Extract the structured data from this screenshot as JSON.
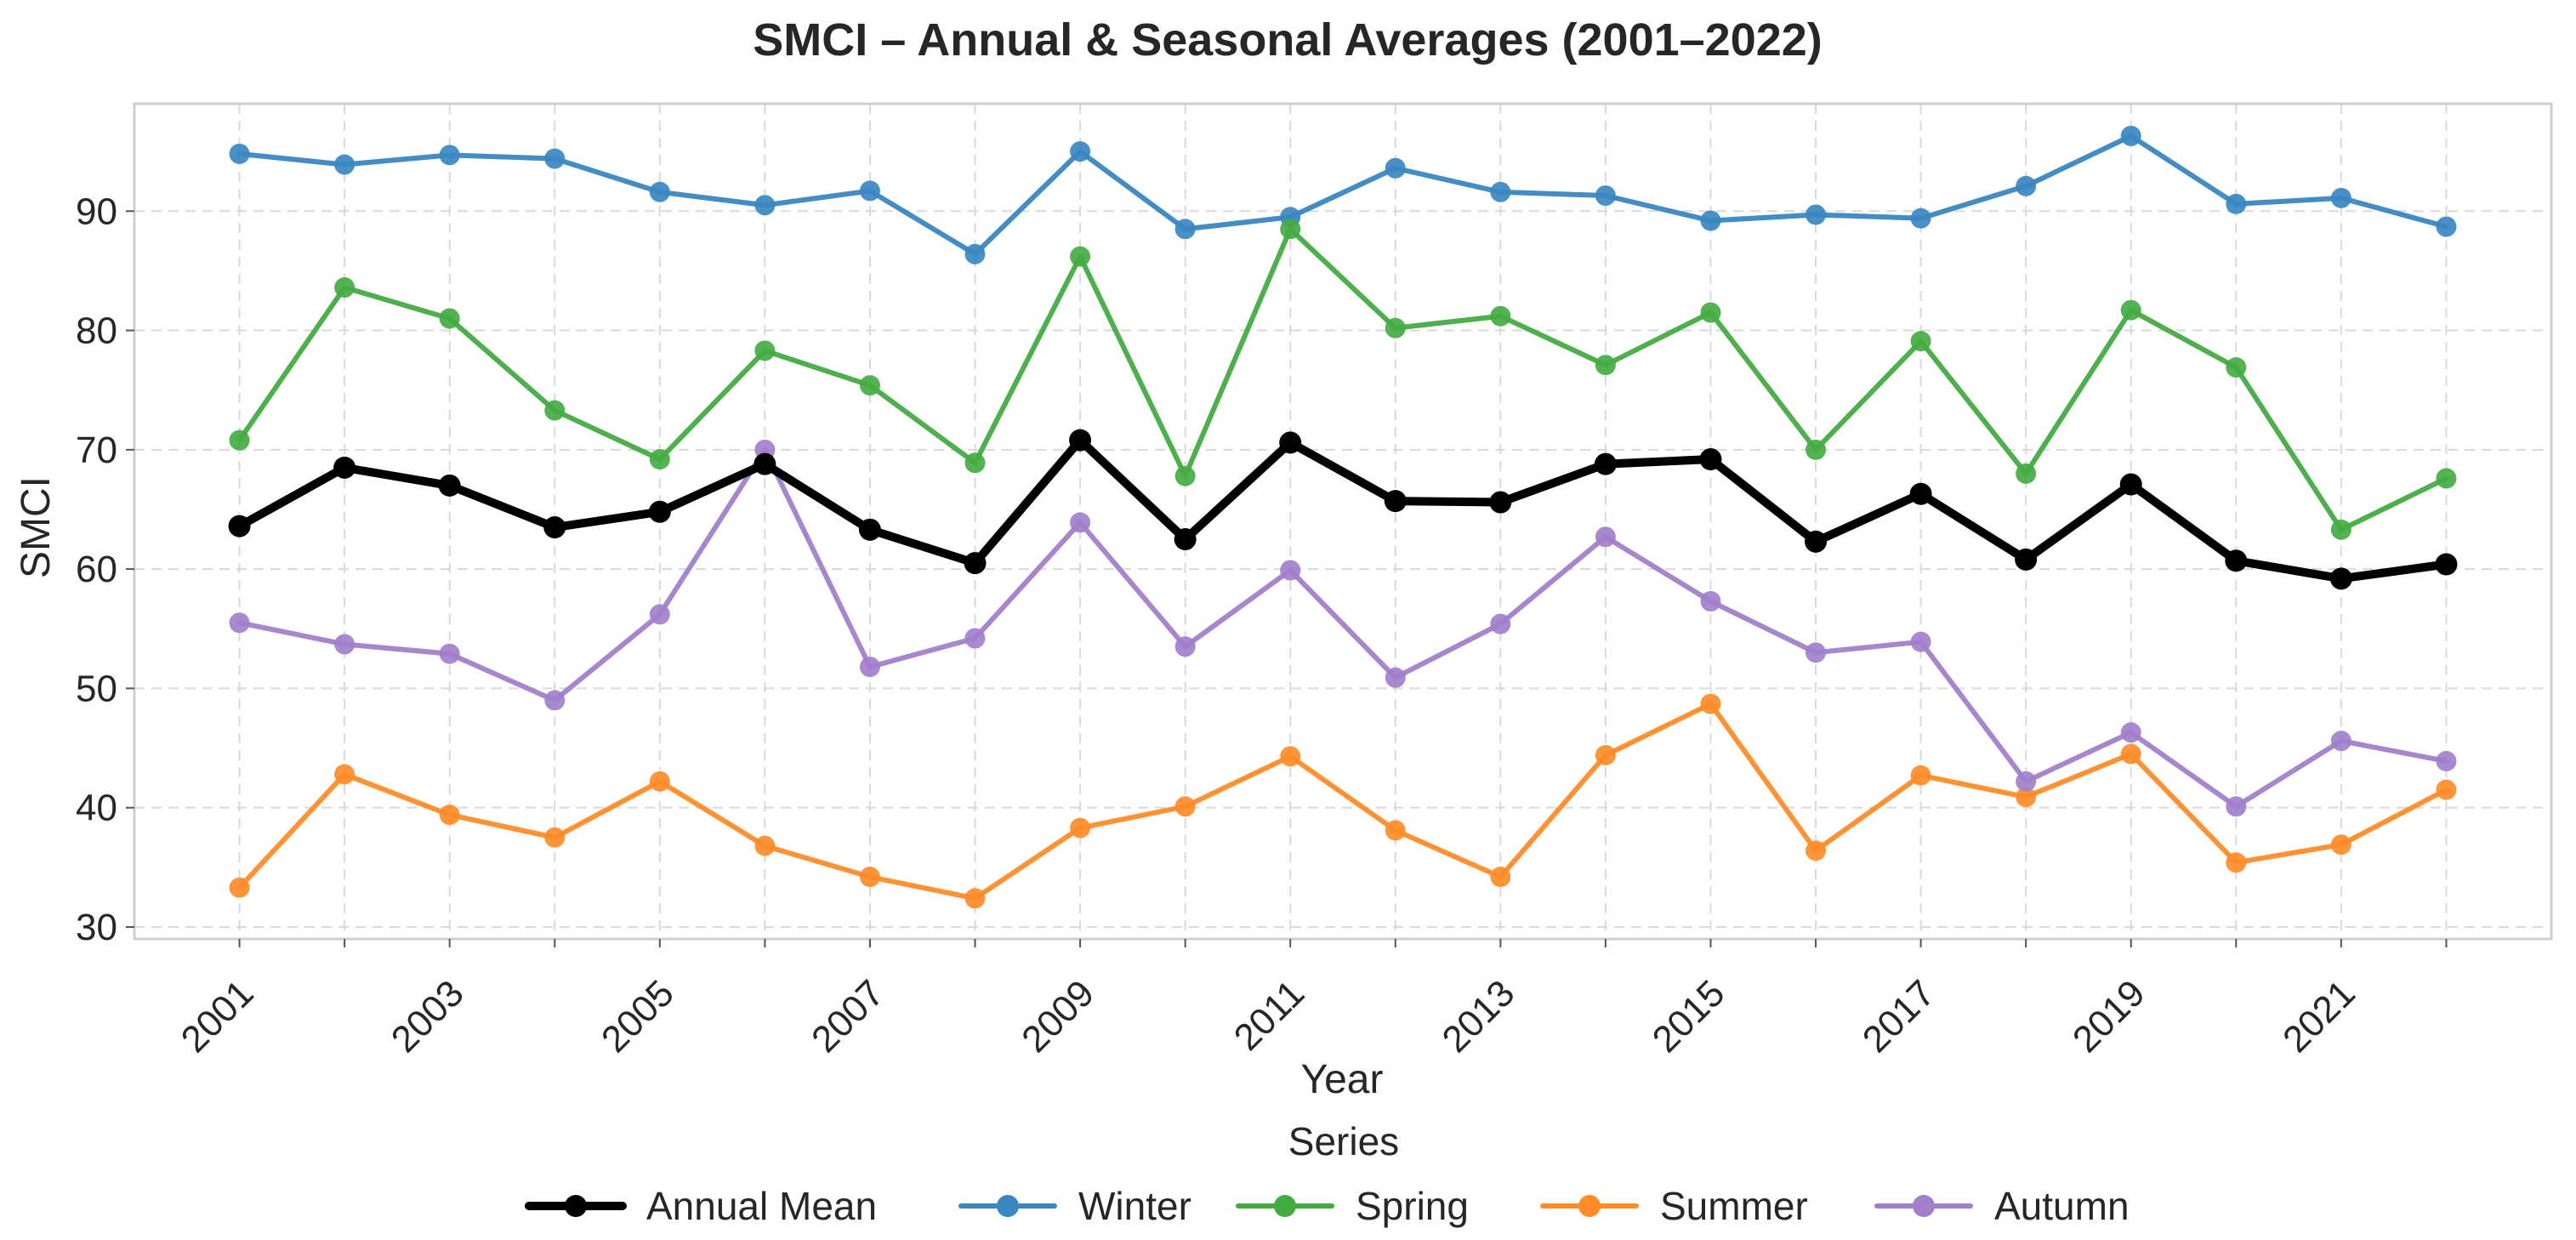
{
  "chart_data": {
    "type": "line",
    "title": "SMCI – Annual & Seasonal Averages (2001–2022)",
    "xlabel": "Year",
    "ylabel": "SMCI",
    "x": [
      2001,
      2002,
      2003,
      2004,
      2005,
      2006,
      2007,
      2008,
      2009,
      2010,
      2011,
      2012,
      2013,
      2014,
      2015,
      2016,
      2017,
      2018,
      2019,
      2020,
      2021,
      2022
    ],
    "x_tick_labels": [
      "2001",
      "2003",
      "2005",
      "2007",
      "2009",
      "2011",
      "2013",
      "2015",
      "2017",
      "2019",
      "2021"
    ],
    "x_ticks": [
      2001,
      2003,
      2005,
      2007,
      2009,
      2011,
      2013,
      2015,
      2017,
      2019,
      2021
    ],
    "xlim": [
      2000,
      2023
    ],
    "ylim": [
      29,
      99
    ],
    "y_ticks": [
      30,
      40,
      50,
      60,
      70,
      80,
      90
    ],
    "y_tick_labels": [
      "30",
      "40",
      "50",
      "60",
      "70",
      "80",
      "90"
    ],
    "grid": true,
    "legend_title": "Series",
    "legend_position": "bottom-center",
    "series": [
      {
        "name": "Annual Mean",
        "color": "#000000",
        "values": [
          63.6,
          68.5,
          67.0,
          63.5,
          64.8,
          68.8,
          63.3,
          60.5,
          70.8,
          62.5,
          70.6,
          65.7,
          65.6,
          68.8,
          69.2,
          62.3,
          66.3,
          60.8,
          67.1,
          60.7,
          59.2,
          60.4
        ]
      },
      {
        "name": "Winter",
        "color": "#3a87c1",
        "values": [
          94.8,
          93.9,
          94.7,
          94.4,
          91.6,
          90.5,
          91.7,
          86.4,
          95.0,
          88.5,
          89.5,
          93.6,
          91.6,
          91.3,
          89.2,
          89.7,
          89.4,
          92.1,
          96.3,
          90.6,
          91.1,
          88.7
        ]
      },
      {
        "name": "Spring",
        "color": "#44ab43",
        "values": [
          70.8,
          83.6,
          81.0,
          73.3,
          69.2,
          78.3,
          75.4,
          68.9,
          86.2,
          67.8,
          88.5,
          80.2,
          81.2,
          77.1,
          81.5,
          70.0,
          79.1,
          68.0,
          81.7,
          76.9,
          63.3,
          67.6
        ]
      },
      {
        "name": "Summer",
        "color": "#ff8c28",
        "values": [
          33.3,
          42.8,
          39.4,
          37.5,
          42.2,
          36.8,
          34.2,
          32.4,
          38.3,
          40.1,
          44.3,
          38.1,
          34.2,
          44.4,
          48.7,
          36.4,
          42.7,
          40.9,
          44.5,
          35.4,
          36.9,
          41.5
        ]
      },
      {
        "name": "Autumn",
        "color": "#a27fcb",
        "values": [
          55.5,
          53.7,
          52.9,
          49.0,
          56.2,
          70.0,
          51.8,
          54.2,
          63.9,
          53.5,
          59.9,
          50.9,
          55.4,
          62.7,
          57.3,
          53.0,
          53.9,
          42.2,
          46.3,
          40.1,
          45.6,
          43.9
        ]
      }
    ]
  }
}
